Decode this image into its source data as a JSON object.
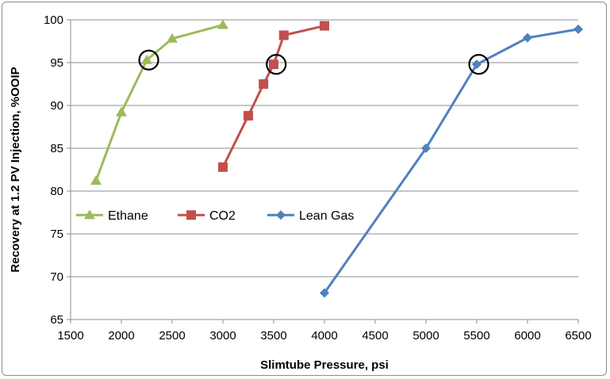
{
  "chart_data": {
    "type": "line",
    "title": "",
    "xlabel": "Slimtube Pressure, psi",
    "ylabel": "Recovery at 1.2 PV Injection, %OOIP",
    "xlim": [
      1500,
      6500
    ],
    "ylim": [
      65,
      100
    ],
    "xticks": [
      1500,
      2000,
      2500,
      3000,
      3500,
      4000,
      4500,
      5000,
      5500,
      6000,
      6500
    ],
    "yticks": [
      65,
      70,
      75,
      80,
      85,
      90,
      95,
      100
    ],
    "grid": "horizontal",
    "legend_position": "inside-left-middle",
    "series": [
      {
        "name": "Ethane",
        "color": "#9BBB59",
        "marker": "triangle",
        "x": [
          1750,
          2000,
          2250,
          2500,
          3000
        ],
        "y": [
          81.2,
          89.2,
          95.3,
          97.8,
          99.4
        ]
      },
      {
        "name": "CO2",
        "color": "#C0504D",
        "marker": "square",
        "x": [
          3000,
          3250,
          3400,
          3500,
          3600,
          4000
        ],
        "y": [
          82.8,
          88.8,
          92.5,
          94.8,
          98.2,
          99.3
        ]
      },
      {
        "name": "Lean Gas",
        "color": "#4F81BD",
        "marker": "diamond",
        "x": [
          4000,
          5000,
          5500,
          6000,
          6500
        ],
        "y": [
          68.1,
          85.0,
          94.8,
          97.9,
          98.9
        ]
      }
    ],
    "annotations": [
      {
        "type": "circle",
        "series": "Ethane",
        "x": 2270,
        "y": 95.3
      },
      {
        "type": "circle",
        "series": "CO2",
        "x": 3525,
        "y": 94.8
      },
      {
        "type": "circle",
        "series": "Lean Gas",
        "x": 5520,
        "y": 94.8
      }
    ]
  }
}
